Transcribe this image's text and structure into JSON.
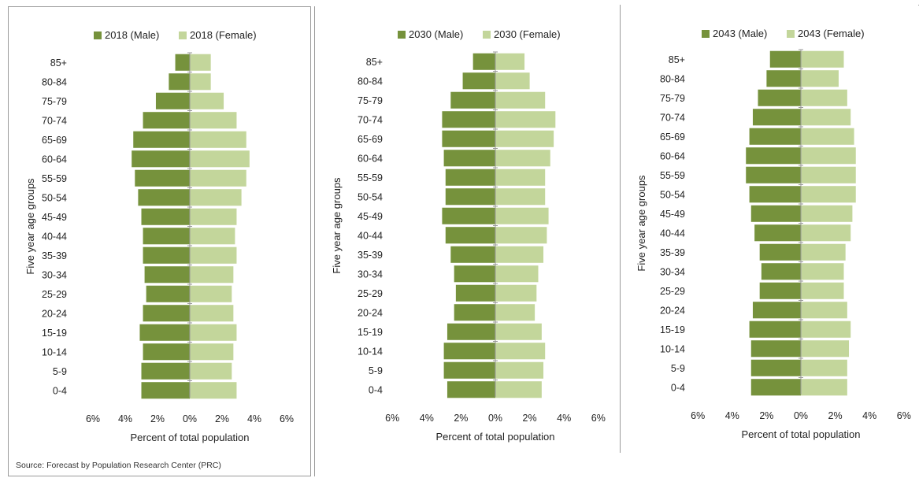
{
  "source": "Source: Forecast by Population Research Center (PRC)",
  "colors": {
    "male": "#76923c",
    "female": "#c3d69b"
  },
  "chart_data": [
    {
      "type": "bar",
      "orientation": "horizontal",
      "ylabel": "Five year age groups",
      "xlabel": "Percent of total population",
      "xlim": [
        -6,
        6
      ],
      "xticks": [
        "6%",
        "4%",
        "2%",
        "0%",
        "2%",
        "4%",
        "6%"
      ],
      "categories": [
        "85+",
        "80-84",
        "75-79",
        "70-74",
        "65-69",
        "60-64",
        "55-59",
        "50-54",
        "45-49",
        "40-44",
        "35-39",
        "30-34",
        "25-29",
        "20-24",
        "15-19",
        "10-14",
        "5-9",
        "0-4"
      ],
      "legend_position": "top",
      "series": [
        {
          "name": "2018 (Male)",
          "values": [
            0.9,
            1.3,
            2.1,
            2.9,
            3.5,
            3.6,
            3.4,
            3.2,
            3.0,
            2.9,
            2.9,
            2.8,
            2.7,
            2.9,
            3.1,
            2.9,
            3.0,
            3.0
          ]
        },
        {
          "name": "2018 (Female)",
          "values": [
            1.3,
            1.3,
            2.1,
            2.9,
            3.5,
            3.7,
            3.5,
            3.2,
            2.9,
            2.8,
            2.9,
            2.7,
            2.6,
            2.7,
            2.9,
            2.7,
            2.6,
            2.9
          ]
        }
      ]
    },
    {
      "type": "bar",
      "orientation": "horizontal",
      "ylabel": "Five year age groups",
      "xlabel": "Percent of total population",
      "xlim": [
        -6,
        6
      ],
      "xticks": [
        "6%",
        "4%",
        "2%",
        "0%",
        "2%",
        "4%",
        "6%"
      ],
      "categories": [
        "85+",
        "80-84",
        "75-79",
        "70-74",
        "65-69",
        "60-64",
        "55-59",
        "50-54",
        "45-49",
        "40-44",
        "35-39",
        "30-34",
        "25-29",
        "20-24",
        "15-19",
        "10-14",
        "5-9",
        "0-4"
      ],
      "legend_position": "top",
      "series": [
        {
          "name": "2030 (Male)",
          "values": [
            1.3,
            1.9,
            2.6,
            3.1,
            3.1,
            3.0,
            2.9,
            2.9,
            3.1,
            2.9,
            2.6,
            2.4,
            2.3,
            2.4,
            2.8,
            3.0,
            3.0,
            2.8
          ]
        },
        {
          "name": "2030 (Female)",
          "values": [
            1.7,
            2.0,
            2.9,
            3.5,
            3.4,
            3.2,
            2.9,
            2.9,
            3.1,
            3.0,
            2.8,
            2.5,
            2.4,
            2.3,
            2.7,
            2.9,
            2.8,
            2.7
          ]
        }
      ]
    },
    {
      "type": "bar",
      "orientation": "horizontal",
      "ylabel": "Five year age groups",
      "xlabel": "Percent of total population",
      "xlim": [
        -6,
        6
      ],
      "xticks": [
        "6%",
        "4%",
        "2%",
        "0%",
        "2%",
        "4%",
        "6%"
      ],
      "categories": [
        "85+",
        "80-84",
        "75-79",
        "70-74",
        "65-69",
        "60-64",
        "55-59",
        "50-54",
        "45-49",
        "40-44",
        "35-39",
        "30-34",
        "25-29",
        "20-24",
        "15-19",
        "10-14",
        "5-9",
        "0-4"
      ],
      "legend_position": "top",
      "series": [
        {
          "name": "2043 (Male)",
          "values": [
            1.8,
            2.0,
            2.5,
            2.8,
            3.0,
            3.2,
            3.2,
            3.0,
            2.9,
            2.7,
            2.4,
            2.3,
            2.4,
            2.8,
            3.0,
            2.9,
            2.9,
            2.9
          ]
        },
        {
          "name": "2043 (Female)",
          "values": [
            2.5,
            2.2,
            2.7,
            2.9,
            3.1,
            3.2,
            3.2,
            3.2,
            3.0,
            2.9,
            2.6,
            2.5,
            2.5,
            2.7,
            2.9,
            2.8,
            2.7,
            2.7
          ]
        }
      ]
    }
  ]
}
